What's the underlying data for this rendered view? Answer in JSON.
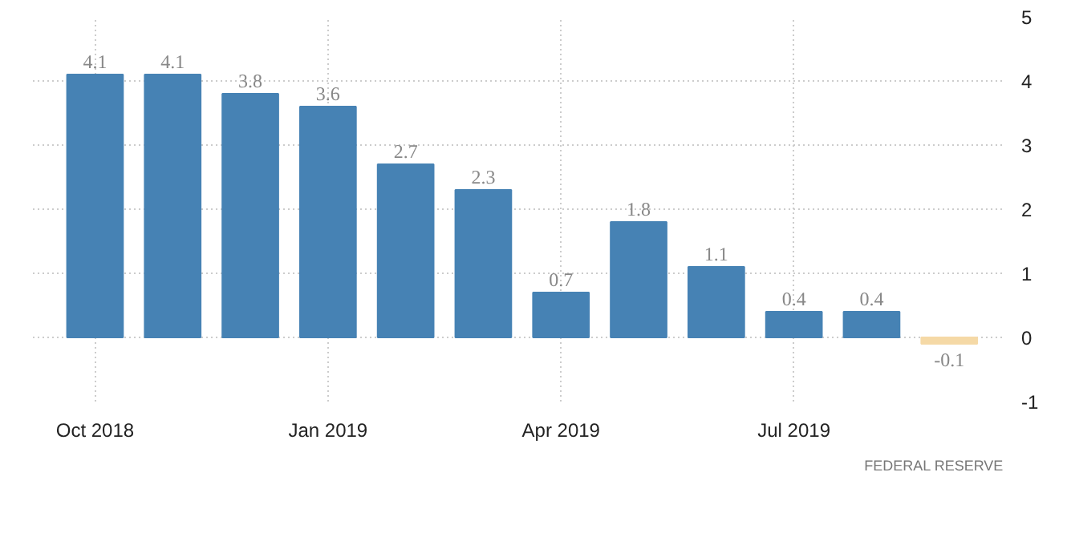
{
  "chart_data": {
    "type": "bar",
    "categories": [
      "Oct 2018",
      null,
      null,
      "Jan 2019",
      null,
      null,
      "Apr 2019",
      null,
      null,
      "Jul 2019",
      null,
      null
    ],
    "values": [
      4.1,
      4.1,
      3.8,
      3.6,
      2.7,
      2.3,
      0.7,
      1.8,
      1.1,
      0.4,
      0.4,
      -0.1
    ],
    "colors": [
      "#4682b4",
      "#4682b4",
      "#4682b4",
      "#4682b4",
      "#4682b4",
      "#4682b4",
      "#4682b4",
      "#4682b4",
      "#4682b4",
      "#4682b4",
      "#4682b4",
      "#f5d9a6"
    ],
    "ylim": [
      -1,
      5
    ],
    "yticks": [
      -1,
      0,
      1,
      2,
      3,
      4,
      5
    ],
    "grid": true,
    "data_labels": true,
    "annotations": [
      "FEDERAL RESERVE"
    ]
  }
}
